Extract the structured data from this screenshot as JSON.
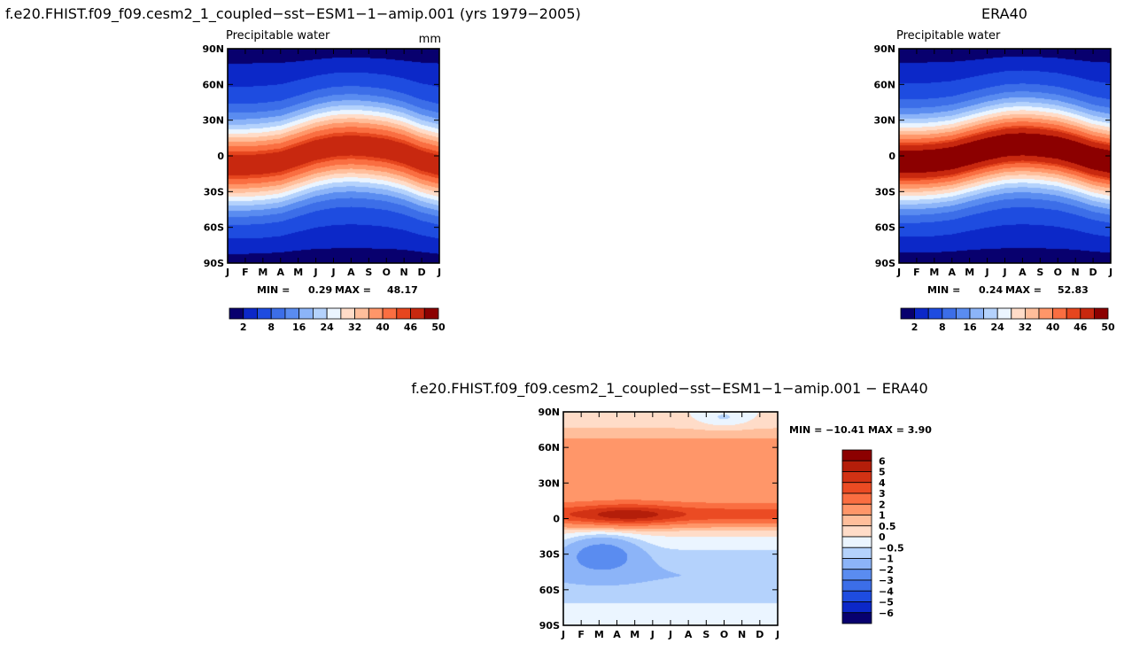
{
  "chart_data": [
    {
      "type": "heatmap",
      "title": "f.e20.FHIST.f09_f09.cesm2_1_coupled−sst−ESM1−1−amip.001 (yrs 1979−2005)",
      "variable": "Precipitable water",
      "units": "mm",
      "x_ticks": [
        "J",
        "F",
        "M",
        "A",
        "M",
        "J",
        "J",
        "A",
        "S",
        "O",
        "N",
        "D",
        "J"
      ],
      "y_ticks": [
        "90N",
        "60N",
        "30N",
        "0",
        "30S",
        "60S",
        "90S"
      ],
      "min_label": "MIN =",
      "min_value": "0.29",
      "max_label": "MAX =",
      "max_value": "48.17",
      "itcz_peak_lat": [
        -8,
        -8,
        -7,
        -5,
        0,
        5,
        8,
        9,
        8,
        6,
        2,
        -4,
        -8
      ],
      "colorbar_labels": [
        "2",
        "8",
        "16",
        "24",
        "32",
        "40",
        "46",
        "50"
      ],
      "colorbar_colors": [
        "#08006e",
        "#0c28c8",
        "#1e4ce0",
        "#3c6ee8",
        "#5a8cf0",
        "#8cb4f8",
        "#b4d2fc",
        "#ebf5ff",
        "#ffdcc8",
        "#ffbe9b",
        "#ff9669",
        "#fa6e41",
        "#e6461e",
        "#c8280f",
        "#8c0000"
      ]
    },
    {
      "type": "heatmap",
      "title": "ERA40",
      "variable": "Precipitable water",
      "x_ticks": [
        "J",
        "F",
        "M",
        "A",
        "M",
        "J",
        "J",
        "A",
        "S",
        "O",
        "N",
        "D",
        "J"
      ],
      "y_ticks": [
        "90N",
        "60N",
        "30N",
        "0",
        "30S",
        "60S",
        "90S"
      ],
      "min_label": "MIN =",
      "min_value": "0.24",
      "max_label": "MAX =",
      "max_value": "52.83",
      "itcz_peak_lat": [
        -5,
        -5,
        -4,
        -2,
        2,
        6,
        9,
        10,
        9,
        7,
        3,
        -2,
        -5
      ],
      "colorbar_labels": [
        "2",
        "8",
        "16",
        "24",
        "32",
        "40",
        "46",
        "50"
      ],
      "colorbar_colors": [
        "#08006e",
        "#0c28c8",
        "#1e4ce0",
        "#3c6ee8",
        "#5a8cf0",
        "#8cb4f8",
        "#b4d2fc",
        "#ebf5ff",
        "#ffdcc8",
        "#ffbe9b",
        "#ff9669",
        "#fa6e41",
        "#e6461e",
        "#c8280f",
        "#8c0000"
      ]
    },
    {
      "type": "heatmap",
      "title": "f.e20.FHIST.f09_f09.cesm2_1_coupled−sst−ESM1−1−amip.001 − ERA40",
      "x_ticks": [
        "J",
        "F",
        "M",
        "A",
        "M",
        "J",
        "J",
        "A",
        "S",
        "O",
        "N",
        "D",
        "J"
      ],
      "y_ticks": [
        "90N",
        "60N",
        "30N",
        "0",
        "30S",
        "60S",
        "90S"
      ],
      "stats_text": "MIN = −10.41 MAX =    3.90",
      "colorbar_labels": [
        "6",
        "5",
        "4",
        "3",
        "2",
        "1",
        "0.5",
        "0",
        "−0.5",
        "−1",
        "−2",
        "−3",
        "−4",
        "−5",
        "−6"
      ],
      "colorbar_colors": [
        "#8c0000",
        "#b41e0a",
        "#d23214",
        "#eb4b23",
        "#fa6e41",
        "#ff9669",
        "#ffbe9b",
        "#ffdcc8",
        "#ebf5ff",
        "#b4d2fc",
        "#8cb4f8",
        "#5a8cf0",
        "#3c6ee8",
        "#1e4ce0",
        "#0c28c8",
        "#08006e"
      ]
    }
  ]
}
